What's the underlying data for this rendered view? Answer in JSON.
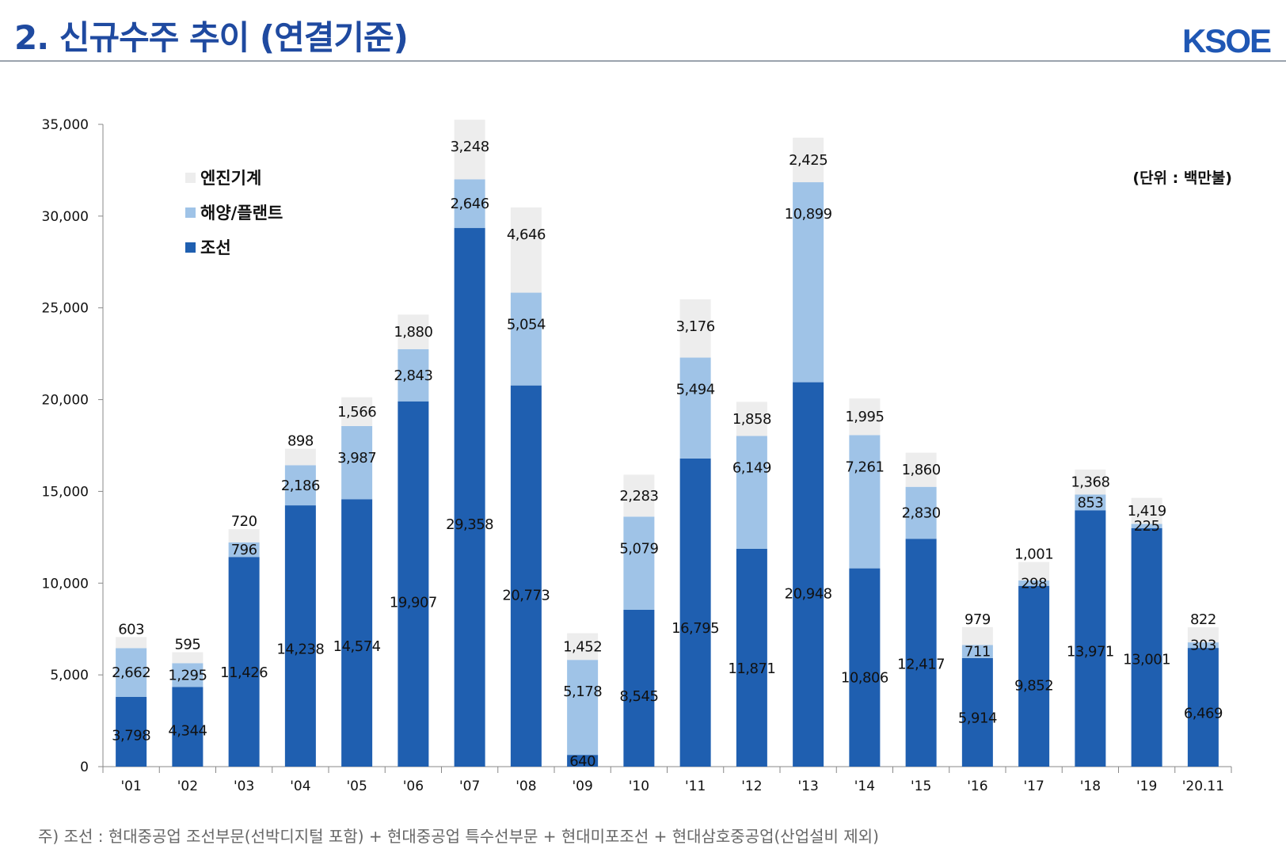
{
  "header": {
    "title": "2. 신규수주 추이 (연결기준)",
    "logo": "KSOE"
  },
  "unit_label": "(단위 : 백만불)",
  "footnote": "주) 조선 : 현대중공업 조선부문(선박디지털 포함) + 현대중공업 특수선부문 + 현대미포조선 + 현대삼호중공업(산업설비 제외)",
  "colors": {
    "shipbuilding": "#1f5fb0",
    "offshore": "#9fc3e7",
    "engine": "#ededed",
    "axis": "#888888"
  },
  "chart_data": {
    "type": "bar",
    "stacked": true,
    "categories": [
      "'01",
      "'02",
      "'03",
      "'04",
      "'05",
      "'06",
      "'07",
      "'08",
      "'09",
      "'10",
      "'11",
      "'12",
      "'13",
      "'14",
      "'15",
      "'16",
      "'17",
      "'18",
      "'19",
      "'20.11"
    ],
    "series": [
      {
        "key": "shipbuilding",
        "name": "조선",
        "values": [
          3798,
          4344,
          11426,
          14238,
          14574,
          19907,
          29358,
          20773,
          640,
          8545,
          16795,
          11871,
          20948,
          10806,
          12417,
          5914,
          9852,
          13971,
          13001,
          6469
        ]
      },
      {
        "key": "offshore",
        "name": "해양/플랜트",
        "values": [
          2662,
          1295,
          796,
          2186,
          3987,
          2843,
          2646,
          5054,
          5178,
          5079,
          5494,
          6149,
          10899,
          7261,
          2830,
          711,
          298,
          853,
          225,
          303
        ]
      },
      {
        "key": "engine",
        "name": "엔진기계",
        "values": [
          603,
          595,
          720,
          898,
          1566,
          1880,
          3248,
          4646,
          1452,
          2283,
          3176,
          1858,
          2425,
          1995,
          1860,
          979,
          1001,
          1368,
          1419,
          822
        ]
      }
    ],
    "legend_order": [
      "엔진기계",
      "해양/플랜트",
      "조선"
    ],
    "ylim": [
      0,
      35000
    ],
    "yticks": [
      0,
      5000,
      10000,
      15000,
      20000,
      25000,
      30000,
      35000
    ],
    "ytick_labels": [
      "0",
      "5,000",
      "10,000",
      "15,000",
      "20,000",
      "25,000",
      "30,000",
      "35,000"
    ],
    "xlabel": "",
    "ylabel": "",
    "legend": "top-left",
    "grid": false
  }
}
